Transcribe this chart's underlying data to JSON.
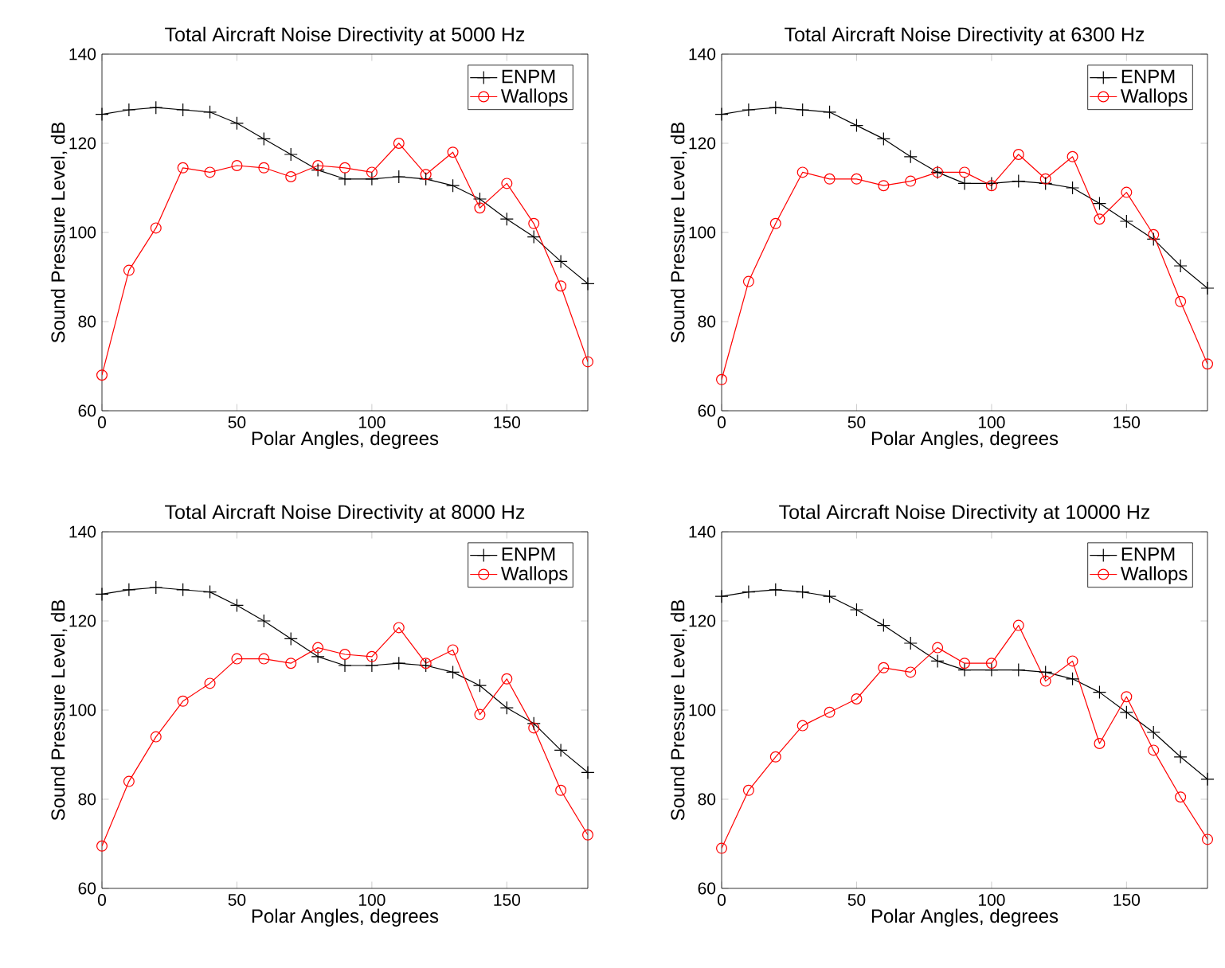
{
  "chart_data": [
    {
      "type": "line",
      "title": "Total Aircraft Noise Directivity at 5000 Hz",
      "xlabel": "Polar Angles, degrees",
      "ylabel": "Sound Pressure Level, dB",
      "x": [
        0,
        10,
        20,
        30,
        40,
        50,
        60,
        70,
        80,
        90,
        100,
        110,
        120,
        130,
        140,
        150,
        160,
        170,
        180
      ],
      "xlim": [
        0,
        180
      ],
      "xticks": [
        0,
        50,
        100,
        150
      ],
      "ylim": [
        60,
        140
      ],
      "yticks": [
        60,
        80,
        100,
        120,
        140
      ],
      "legend": "top right",
      "grid": false,
      "series": [
        {
          "name": "ENPM",
          "color": "#000000",
          "marker": "cross",
          "values": [
            126.5,
            127.5,
            128,
            127.5,
            127,
            124.5,
            121,
            117.5,
            114,
            112,
            112,
            112.5,
            112,
            110.5,
            107.5,
            103,
            99,
            93.5,
            88.5
          ]
        },
        {
          "name": "Wallops",
          "color": "#ff0000",
          "marker": "circle",
          "values": [
            68,
            91.5,
            101,
            114.5,
            113.5,
            115,
            114.5,
            112.5,
            115,
            114.5,
            113.5,
            120,
            113,
            118,
            105.5,
            111,
            102,
            88,
            71
          ]
        }
      ]
    },
    {
      "type": "line",
      "title": "Total Aircraft Noise Directivity at 6300 Hz",
      "xlabel": "Polar Angles, degrees",
      "ylabel": "Sound Pressure Level, dB",
      "x": [
        0,
        10,
        20,
        30,
        40,
        50,
        60,
        70,
        80,
        90,
        100,
        110,
        120,
        130,
        140,
        150,
        160,
        170,
        180
      ],
      "xlim": [
        0,
        180
      ],
      "xticks": [
        0,
        50,
        100,
        150
      ],
      "ylim": [
        60,
        140
      ],
      "yticks": [
        60,
        80,
        100,
        120,
        140
      ],
      "legend": "top right",
      "grid": false,
      "series": [
        {
          "name": "ENPM",
          "color": "#000000",
          "marker": "cross",
          "values": [
            126.5,
            127.5,
            128,
            127.5,
            127,
            124,
            121,
            117,
            113.5,
            111,
            111,
            111.5,
            111,
            110,
            106.5,
            102.5,
            98.5,
            92.5,
            87.5
          ]
        },
        {
          "name": "Wallops",
          "color": "#ff0000",
          "marker": "circle",
          "values": [
            67,
            89,
            102,
            113.5,
            112,
            112,
            110.5,
            111.5,
            113.5,
            113.5,
            110.5,
            117.5,
            112,
            117,
            103,
            109,
            99.5,
            84.5,
            70.5
          ]
        }
      ]
    },
    {
      "type": "line",
      "title": "Total Aircraft Noise Directivity at 8000 Hz",
      "xlabel": "Polar Angles, degrees",
      "ylabel": "Sound Pressure Level, dB",
      "x": [
        0,
        10,
        20,
        30,
        40,
        50,
        60,
        70,
        80,
        90,
        100,
        110,
        120,
        130,
        140,
        150,
        160,
        170,
        180
      ],
      "xlim": [
        0,
        180
      ],
      "xticks": [
        0,
        50,
        100,
        150
      ],
      "ylim": [
        60,
        140
      ],
      "yticks": [
        60,
        80,
        100,
        120,
        140
      ],
      "legend": "top right",
      "grid": false,
      "series": [
        {
          "name": "ENPM",
          "color": "#000000",
          "marker": "cross",
          "values": [
            126,
            127,
            127.5,
            127,
            126.5,
            123.5,
            120,
            116,
            112,
            110,
            110,
            110.5,
            110,
            108.5,
            105.5,
            100.5,
            97,
            91,
            86
          ]
        },
        {
          "name": "Wallops",
          "color": "#ff0000",
          "marker": "circle",
          "values": [
            69.5,
            84,
            94,
            102,
            106,
            111.5,
            111.5,
            110.5,
            114,
            112.5,
            112,
            118.5,
            110.5,
            113.5,
            99,
            107,
            96,
            82,
            72
          ]
        }
      ]
    },
    {
      "type": "line",
      "title": "Total Aircraft Noise Directivity at 10000 Hz",
      "xlabel": "Polar Angles, degrees",
      "ylabel": "Sound Pressure Level, dB",
      "x": [
        0,
        10,
        20,
        30,
        40,
        50,
        60,
        70,
        80,
        90,
        100,
        110,
        120,
        130,
        140,
        150,
        160,
        170,
        180
      ],
      "xlim": [
        0,
        180
      ],
      "xticks": [
        0,
        50,
        100,
        150
      ],
      "ylim": [
        60,
        140
      ],
      "yticks": [
        60,
        80,
        100,
        120,
        140
      ],
      "legend": "top right",
      "grid": false,
      "series": [
        {
          "name": "ENPM",
          "color": "#000000",
          "marker": "cross",
          "values": [
            125.5,
            126.5,
            127,
            126.5,
            125.5,
            122.5,
            119,
            115,
            111,
            109,
            109,
            109,
            108.5,
            107,
            104,
            99.5,
            95,
            89.5,
            84.5
          ]
        },
        {
          "name": "Wallops",
          "color": "#ff0000",
          "marker": "circle",
          "values": [
            69,
            82,
            89.5,
            96.5,
            99.5,
            102.5,
            109.5,
            108.5,
            114,
            110.5,
            110.5,
            119,
            106.5,
            111,
            92.5,
            103,
            91,
            80.5,
            71
          ]
        }
      ]
    }
  ]
}
